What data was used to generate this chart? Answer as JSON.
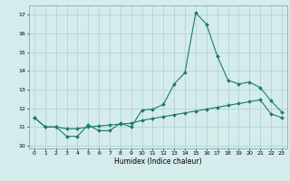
{
  "xlabel": "Humidex (Indice chaleur)",
  "x": [
    0,
    1,
    2,
    3,
    4,
    5,
    6,
    7,
    8,
    9,
    10,
    11,
    12,
    13,
    14,
    15,
    16,
    17,
    18,
    19,
    20,
    21,
    22,
    23
  ],
  "y_main": [
    11.5,
    11.0,
    11.0,
    10.5,
    10.5,
    11.1,
    10.8,
    10.8,
    11.2,
    11.0,
    11.9,
    11.95,
    12.2,
    13.3,
    13.9,
    17.1,
    16.5,
    14.8,
    13.5,
    13.3,
    13.4,
    13.1,
    12.4,
    11.8
  ],
  "y_sec": [
    11.5,
    11.0,
    11.0,
    10.9,
    10.9,
    11.0,
    11.05,
    11.1,
    11.15,
    11.2,
    11.35,
    11.45,
    11.55,
    11.65,
    11.75,
    11.85,
    11.95,
    12.05,
    12.15,
    12.25,
    12.35,
    12.45,
    11.7,
    11.5
  ],
  "line_color": "#1a7a6e",
  "bg_color": "#d4eceb",
  "grid_color": "#aecfce",
  "xlim": [
    -0.5,
    23.5
  ],
  "ylim": [
    9.85,
    17.5
  ],
  "yticks": [
    10,
    11,
    12,
    13,
    14,
    15,
    16,
    17
  ],
  "xticks": [
    0,
    1,
    2,
    3,
    4,
    5,
    6,
    7,
    8,
    9,
    10,
    11,
    12,
    13,
    14,
    15,
    16,
    17,
    18,
    19,
    20,
    21,
    22,
    23
  ]
}
